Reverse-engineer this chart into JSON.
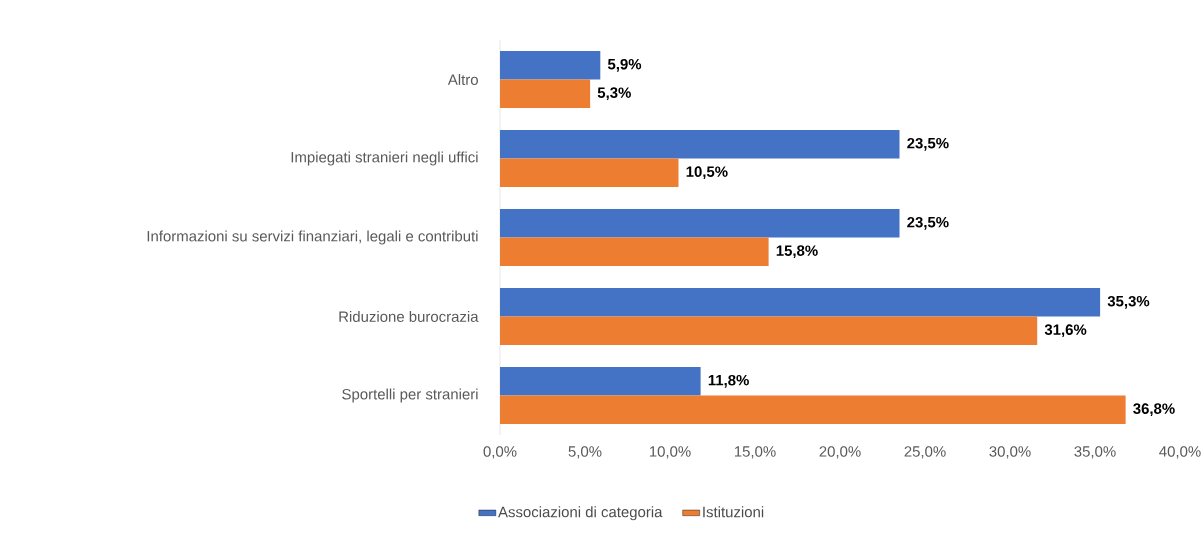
{
  "chart_data": {
    "type": "bar",
    "orientation": "horizontal",
    "categories": [
      "Altro",
      "Impiegati stranieri negli uffici",
      "Informazioni su servizi finanziari, legali e contributi",
      "Riduzione burocrazia",
      "Sportelli per stranieri"
    ],
    "series": [
      {
        "name": "Associazioni di categoria",
        "color": "#4472c4",
        "values": [
          5.9,
          23.5,
          23.5,
          35.3,
          11.8
        ],
        "value_labels": [
          "5,9%",
          "23,5%",
          "23,5%",
          "35,3%",
          "11,8%"
        ]
      },
      {
        "name": "Istituzioni",
        "color": "#ed7d31",
        "values": [
          5.3,
          10.5,
          15.8,
          31.6,
          36.8
        ],
        "value_labels": [
          "5,3%",
          "10,5%",
          "15,8%",
          "31,6%",
          "36,8%"
        ]
      }
    ],
    "xlim": [
      0,
      40
    ],
    "xticks": [
      {
        "value": 0,
        "label": "0,0%"
      },
      {
        "value": 5,
        "label": "5,0%"
      },
      {
        "value": 10,
        "label": "10,0%"
      },
      {
        "value": 15,
        "label": "15,0%"
      },
      {
        "value": 20,
        "label": "20,0%"
      },
      {
        "value": 25,
        "label": "25,0%"
      },
      {
        "value": 30,
        "label": "30,0%"
      },
      {
        "value": 35,
        "label": "35,0%"
      },
      {
        "value": 40,
        "label": "40,0%"
      }
    ],
    "grid": false,
    "legend": "bottom"
  }
}
